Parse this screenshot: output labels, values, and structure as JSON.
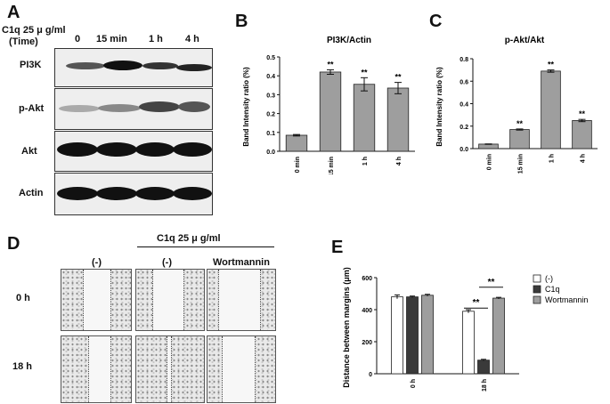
{
  "panel_a": {
    "label": "A",
    "header_line1": "C1q 25 μ g/ml",
    "header_line2": "(Time)",
    "timepoints": [
      "0",
      "15 min",
      "1 h",
      "4 h"
    ],
    "rows": [
      "PI3K",
      "p-Akt",
      "Akt",
      "Actin"
    ]
  },
  "panel_d": {
    "label": "D",
    "treatment_header": "C1q 25 μ g/ml",
    "columns": [
      "(-)",
      "(-)",
      "Wortmannin"
    ],
    "rows": [
      "0 h",
      "18 h"
    ]
  },
  "chart_data": [
    {
      "panel": "B",
      "type": "bar",
      "title": "PI3K/Actin",
      "ylabel": "Band Intensity ratio (%)",
      "xlabel": "",
      "categories": [
        "0 min",
        "15 min",
        "1 h",
        "4 h"
      ],
      "values": [
        0.085,
        0.42,
        0.355,
        0.335
      ],
      "errors": [
        0.004,
        0.012,
        0.035,
        0.03
      ],
      "annotations": [
        "",
        "**",
        "**",
        "**"
      ],
      "ylim": [
        0,
        0.5
      ],
      "yticks": [
        "0.0",
        "0.1",
        "0.2",
        "0.3",
        "0.4",
        "0.5"
      ],
      "bar_color": "#9e9e9e"
    },
    {
      "panel": "C",
      "type": "bar",
      "title": "p-Akt/Akt",
      "ylabel": "Band Intensity ratio (%)",
      "xlabel": "",
      "categories": [
        "0 min",
        "15 min",
        "1 h",
        "4 h"
      ],
      "values": [
        0.04,
        0.17,
        0.69,
        0.25
      ],
      "errors": [
        0.002,
        0.005,
        0.01,
        0.01
      ],
      "annotations": [
        "",
        "**",
        "**",
        "**"
      ],
      "ylim": [
        0,
        0.8
      ],
      "yticks": [
        "0.0",
        "0.2",
        "0.4",
        "0.6",
        "0.8"
      ],
      "bar_color": "#9e9e9e"
    },
    {
      "panel": "E",
      "type": "bar",
      "title": "",
      "ylabel": "Distance between margins (μm)",
      "xlabel": "",
      "categories": [
        "0 h",
        "18 h"
      ],
      "series": [
        {
          "name": "(-)",
          "color": "#ffffff",
          "values": [
            480,
            390
          ],
          "errors": [
            12,
            10
          ]
        },
        {
          "name": "C1q",
          "color": "#3a3a3a",
          "values": [
            480,
            85
          ],
          "errors": [
            5,
            5
          ]
        },
        {
          "name": "Wortmannin",
          "color": "#9e9e9e",
          "values": [
            490,
            472
          ],
          "errors": [
            6,
            5
          ]
        }
      ],
      "ylim": [
        0,
        600
      ],
      "yticks": [
        "0",
        "200",
        "400",
        "600"
      ],
      "significance": [
        {
          "label": "**",
          "between": [
            "(-)",
            "C1q"
          ],
          "category": "18 h"
        },
        {
          "label": "**",
          "between": [
            "C1q",
            "Wortmannin"
          ],
          "category": "18 h"
        }
      ],
      "legend_position": "right"
    }
  ]
}
